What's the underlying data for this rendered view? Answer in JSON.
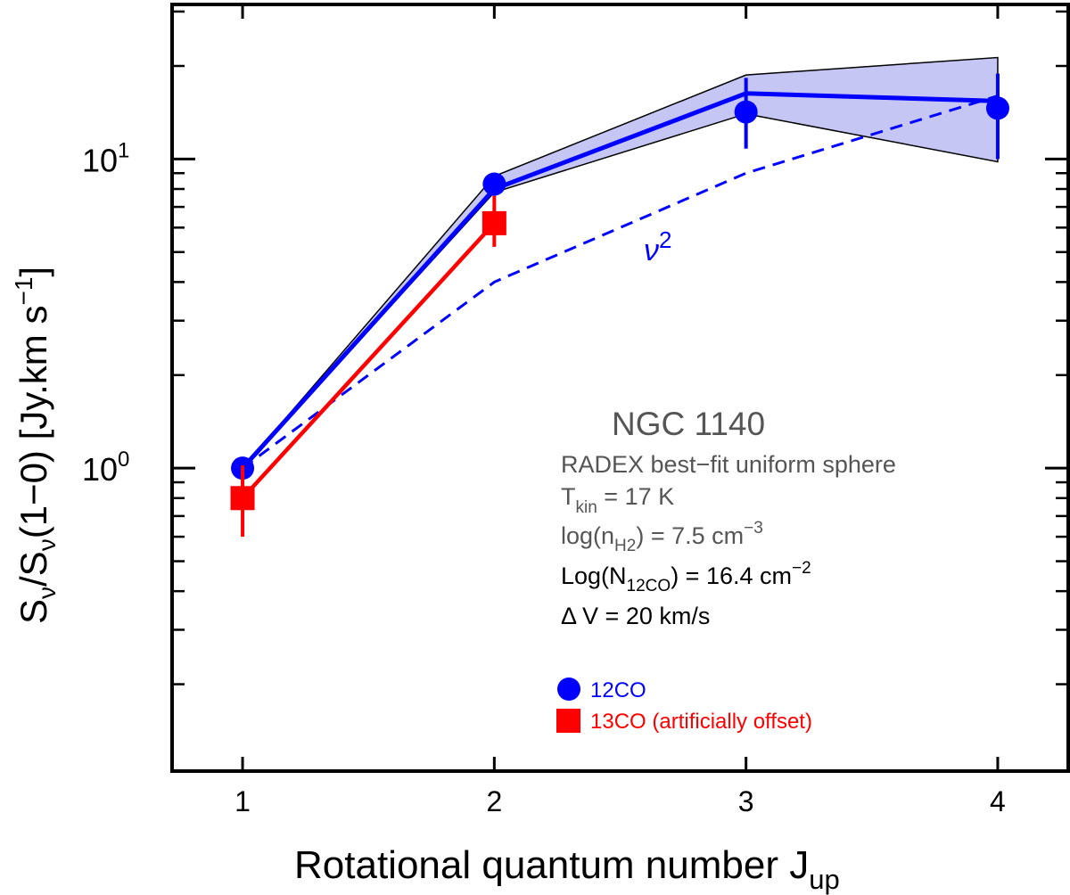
{
  "chart_data": {
    "type": "line",
    "xlabel_main": "Rotational quantum number J",
    "xlabel_sub": "up",
    "ylabel": {
      "s1": "S",
      "sub1": "ν",
      "slash": "/S",
      "sub2": "ν",
      "rest": "(1−0) [Jy.km s",
      "sup": "−1",
      "end": "]"
    },
    "x_ticks": [
      1,
      2,
      3,
      4
    ],
    "xlim": [
      0.72,
      4.28
    ],
    "ylim_log10": [
      -0.98,
      1.5
    ],
    "y_major_ticks": [
      {
        "value": 1,
        "base": "10",
        "exp": "0"
      },
      {
        "value": 10,
        "base": "10",
        "exp": "1"
      }
    ],
    "y_minor_ticks": [
      0.2,
      0.3,
      0.4,
      0.5,
      0.6,
      0.7,
      0.8,
      0.9,
      2,
      3,
      4,
      5,
      6,
      7,
      8,
      9,
      20,
      30
    ],
    "series": [
      {
        "name": "12CO",
        "color": "#0000ff",
        "marker": "circle",
        "x": [
          1,
          2,
          3,
          4
        ],
        "y": [
          1.0,
          8.3,
          14.2,
          14.6
        ],
        "err_lo": [
          0.97,
          7.6,
          10.8,
          10.0
        ],
        "err_hi": [
          1.03,
          9.0,
          18.3,
          18.9
        ]
      },
      {
        "name": "13CO (artificially offset)",
        "color": "#ff0000",
        "marker": "square",
        "x": [
          1,
          2
        ],
        "y": [
          0.8,
          6.2
        ],
        "err_lo": [
          0.6,
          5.2
        ],
        "err_hi": [
          1.02,
          7.6
        ]
      }
    ],
    "model_line": {
      "name": "RADEX best-fit",
      "color": "#0000ff",
      "x": [
        1,
        2,
        3,
        4
      ],
      "y": [
        1.0,
        8.0,
        16.3,
        15.4
      ]
    },
    "model_band": {
      "fill": "#c6c6f5",
      "x": [
        1,
        2,
        3,
        4
      ],
      "lo": [
        1.0,
        7.8,
        14.0,
        9.8
      ],
      "hi": [
        1.0,
        8.8,
        18.7,
        21.3
      ]
    },
    "nu2_line": {
      "label_base": "ν",
      "label_exp": "2",
      "color": "#0000ff",
      "x": [
        1,
        2,
        3,
        4
      ],
      "y": [
        1.0,
        4.0,
        9.0,
        16.0
      ]
    },
    "annotations": {
      "galaxy": "NGC 1140",
      "model": "RADEX best−fit uniform sphere",
      "tkin": {
        "pre": "T",
        "sub": "kin",
        "post": " = 17 K"
      },
      "nh2": {
        "pre": "log(n",
        "sub": "H2",
        "mid": ") = 7.5 cm",
        "sup": "−3"
      },
      "n12co": {
        "pre": "Log(N",
        "sub": "12CO",
        "mid": ") = 16.4 cm",
        "sup": "−2"
      },
      "dv": "Δ V = 20 km/s"
    },
    "legend": {
      "position": "bottom-center",
      "entries": [
        {
          "label": "12CO",
          "color": "#0000ff",
          "marker": "circle"
        },
        {
          "label": "13CO (artificially offset)",
          "color": "#ff0000",
          "marker": "square"
        }
      ]
    },
    "colors": {
      "annotation_gray": "#555555",
      "axis": "#000000"
    }
  }
}
